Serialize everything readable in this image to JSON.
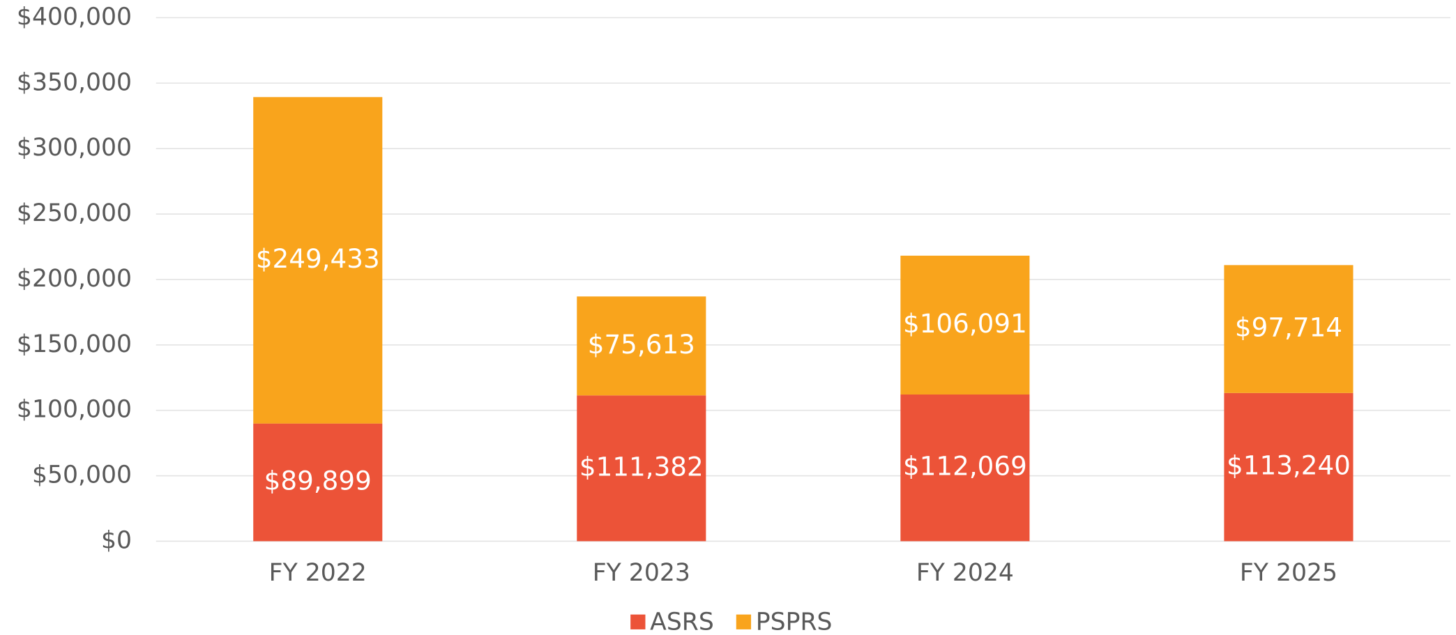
{
  "chart_data": {
    "type": "stacked_bar",
    "categories": [
      "FY 2022",
      "FY 2023",
      "FY 2024",
      "FY 2025"
    ],
    "series": [
      {
        "name": "ASRS",
        "color": "#ec5338",
        "values": [
          89899,
          111382,
          112069,
          113240
        ],
        "value_labels": [
          "$89,899",
          "$111,382",
          "$112,069",
          "$113,240"
        ]
      },
      {
        "name": "PSPRS",
        "color": "#f9a41c",
        "values": [
          249433,
          75613,
          106091,
          97714
        ],
        "value_labels": [
          "$249,433",
          "$75,613",
          "$106,091",
          "$97,714"
        ]
      }
    ],
    "ylim": [
      0,
      400000
    ],
    "yticks": [
      {
        "value": 0,
        "label": "$0"
      },
      {
        "value": 50000,
        "label": "$50,000"
      },
      {
        "value": 100000,
        "label": "$100,000"
      },
      {
        "value": 150000,
        "label": "$150,000"
      },
      {
        "value": 200000,
        "label": "$200,000"
      },
      {
        "value": 250000,
        "label": "$250,000"
      },
      {
        "value": 300000,
        "label": "$300,000"
      },
      {
        "value": 350000,
        "label": "$350,000"
      },
      {
        "value": 400000,
        "label": "$400,000"
      }
    ],
    "grid": true,
    "legend": "bottom"
  }
}
